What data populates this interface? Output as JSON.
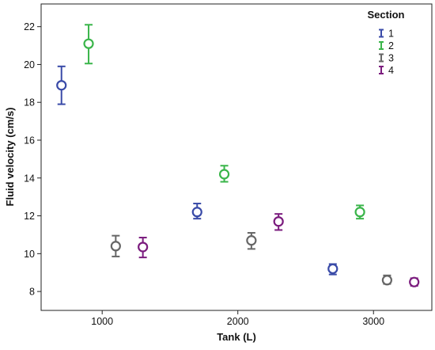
{
  "chart_data": {
    "type": "scatter",
    "subtype": "error-bar",
    "title": "",
    "xlabel": "Tank (L)",
    "ylabel": "Fluid velocity (cm/s)",
    "xlim": [
      550,
      3430
    ],
    "ylim": [
      7.0,
      23.2
    ],
    "xticks": [
      1000,
      2000,
      3000
    ],
    "xtick_labels": [
      "1000",
      "2000",
      "3000"
    ],
    "yticks": [
      8,
      10,
      12,
      14,
      16,
      18,
      20,
      22
    ],
    "ytick_labels": [
      "8",
      "10",
      "12",
      "14",
      "16",
      "18",
      "20",
      "22"
    ],
    "grid": false,
    "legend": {
      "title": "Section",
      "position": "top-right"
    },
    "series": [
      {
        "name": "1",
        "color": "#3a4ba8",
        "points": [
          {
            "x": 700,
            "y": 18.9,
            "low": 17.9,
            "high": 19.9
          },
          {
            "x": 1700,
            "y": 12.2,
            "low": 11.85,
            "high": 12.65
          },
          {
            "x": 2700,
            "y": 9.2,
            "low": 8.9,
            "high": 9.45
          }
        ]
      },
      {
        "name": "2",
        "color": "#3ab54a",
        "points": [
          {
            "x": 900,
            "y": 21.1,
            "low": 20.05,
            "high": 22.1
          },
          {
            "x": 1900,
            "y": 14.2,
            "low": 13.8,
            "high": 14.65
          },
          {
            "x": 2900,
            "y": 12.2,
            "low": 11.85,
            "high": 12.55
          }
        ]
      },
      {
        "name": "3",
        "color": "#666666",
        "points": [
          {
            "x": 1100,
            "y": 10.4,
            "low": 9.85,
            "high": 10.95
          },
          {
            "x": 2100,
            "y": 10.7,
            "low": 10.25,
            "high": 11.1
          },
          {
            "x": 3100,
            "y": 8.6,
            "low": 8.4,
            "high": 8.85
          }
        ]
      },
      {
        "name": "4",
        "color": "#7b1c7e",
        "points": [
          {
            "x": 1300,
            "y": 10.35,
            "low": 9.8,
            "high": 10.85
          },
          {
            "x": 2300,
            "y": 11.7,
            "low": 11.25,
            "high": 12.1
          },
          {
            "x": 3300,
            "y": 8.5,
            "low": 8.3,
            "high": 8.7
          }
        ]
      }
    ]
  }
}
